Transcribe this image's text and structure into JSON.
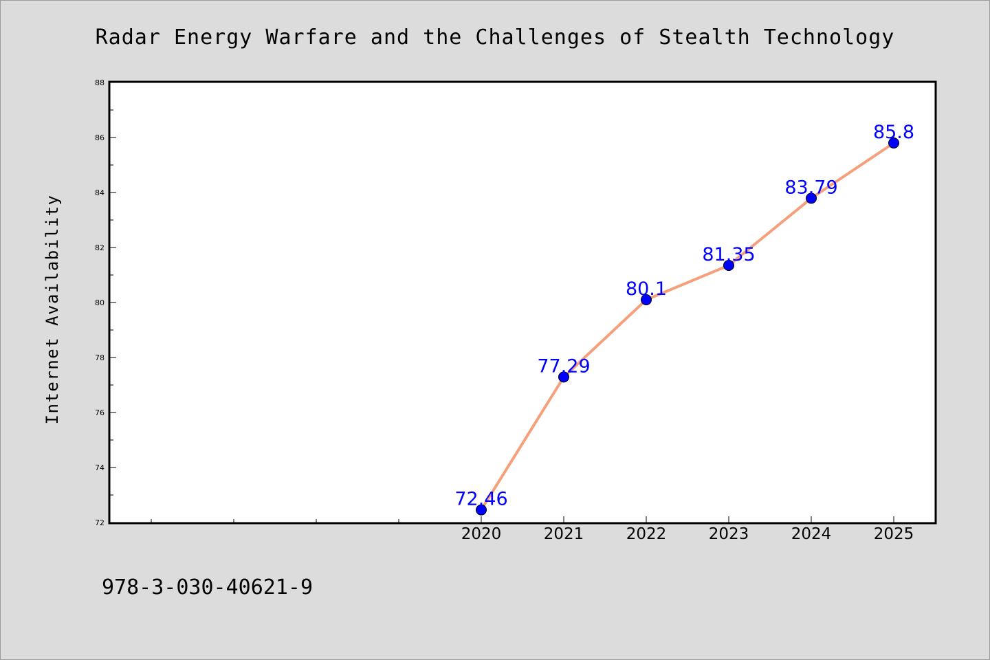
{
  "chart_data": {
    "type": "line",
    "title": "Radar Energy Warfare and the Challenges of Stealth Technology",
    "ylabel": "Internet Availability",
    "xlabel": "",
    "x": [
      2020,
      2021,
      2022,
      2023,
      2024,
      2025
    ],
    "x_tick_labels": [
      "2020",
      "2021",
      "2022",
      "2023",
      "2024",
      "2025"
    ],
    "series": [
      {
        "values": [
          72.46,
          77.29,
          80.1,
          81.35,
          83.79,
          85.8
        ]
      }
    ],
    "data_labels": [
      "72.46",
      "77.29",
      "80.1",
      "81.35",
      "83.79",
      "85.8"
    ],
    "xlim": [
      2015.5,
      2025.5
    ],
    "ylim": [
      72,
      88
    ],
    "y_ticks": [
      72,
      74,
      76,
      78,
      80,
      82,
      84,
      86,
      88
    ],
    "grid": false,
    "legend": "none",
    "line_color": "#f4a07c",
    "marker_color": "#0000ff",
    "label_color": "#0000ff"
  },
  "footer_text": "978-3-030-40621-9"
}
